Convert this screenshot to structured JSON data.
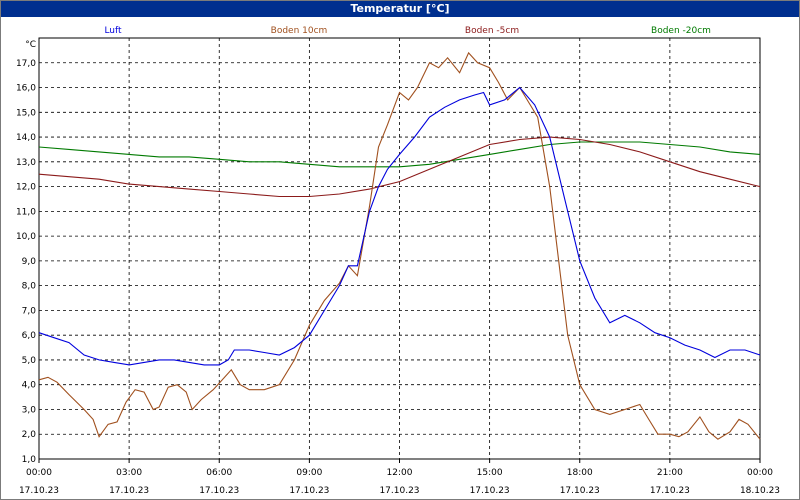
{
  "window": {
    "title": "Temperatur [°C]"
  },
  "chart_data": {
    "type": "line",
    "title": "Temperatur [°C]",
    "unit_label": "°C",
    "ylim": [
      1.0,
      18.0
    ],
    "y_ticks": [
      "1,0",
      "2,0",
      "3,0",
      "4,0",
      "5,0",
      "6,0",
      "7,0",
      "8,0",
      "9,0",
      "10,0",
      "11,0",
      "12,0",
      "13,0",
      "14,0",
      "15,0",
      "16,0",
      "17,0"
    ],
    "x_range_hours": [
      0,
      24
    ],
    "x_ticks": [
      {
        "h": 0,
        "time": "00:00",
        "date": "17.10.23"
      },
      {
        "h": 3,
        "time": "03:00",
        "date": "17.10.23"
      },
      {
        "h": 6,
        "time": "06:00",
        "date": "17.10.23"
      },
      {
        "h": 9,
        "time": "09:00",
        "date": "17.10.23"
      },
      {
        "h": 12,
        "time": "12:00",
        "date": "17.10.23"
      },
      {
        "h": 15,
        "time": "15:00",
        "date": "17.10.23"
      },
      {
        "h": 18,
        "time": "18:00",
        "date": "17.10.23"
      },
      {
        "h": 21,
        "time": "21:00",
        "date": "17.10.23"
      },
      {
        "h": 24,
        "time": "00:00",
        "date": "18.10.23"
      }
    ],
    "grid": true,
    "legend_position": "top",
    "series": [
      {
        "name": "Luft",
        "color": "#0000dd",
        "points": [
          [
            0,
            6.1
          ],
          [
            0.5,
            5.9
          ],
          [
            1,
            5.7
          ],
          [
            1.5,
            5.2
          ],
          [
            2,
            5.0
          ],
          [
            2.5,
            4.9
          ],
          [
            3,
            4.8
          ],
          [
            3.5,
            4.9
          ],
          [
            4,
            5.0
          ],
          [
            4.5,
            5.0
          ],
          [
            5,
            4.9
          ],
          [
            5.5,
            4.8
          ],
          [
            6,
            4.8
          ],
          [
            6.3,
            5.0
          ],
          [
            6.5,
            5.4
          ],
          [
            7,
            5.4
          ],
          [
            7.5,
            5.3
          ],
          [
            8,
            5.2
          ],
          [
            8.5,
            5.5
          ],
          [
            9,
            6.0
          ],
          [
            9.5,
            7.0
          ],
          [
            10,
            8.0
          ],
          [
            10.3,
            8.8
          ],
          [
            10.6,
            8.8
          ],
          [
            11,
            11.0
          ],
          [
            11.3,
            12.0
          ],
          [
            11.6,
            12.7
          ],
          [
            12,
            13.3
          ],
          [
            12.5,
            14.0
          ],
          [
            13,
            14.8
          ],
          [
            13.5,
            15.2
          ],
          [
            14,
            15.5
          ],
          [
            14.5,
            15.7
          ],
          [
            14.8,
            15.8
          ],
          [
            15,
            15.3
          ],
          [
            15.5,
            15.5
          ],
          [
            16,
            16.0
          ],
          [
            16.5,
            15.3
          ],
          [
            17,
            14.0
          ],
          [
            17.5,
            11.5
          ],
          [
            18,
            9.0
          ],
          [
            18.5,
            7.5
          ],
          [
            19,
            6.5
          ],
          [
            19.5,
            6.8
          ],
          [
            20,
            6.5
          ],
          [
            20.5,
            6.1
          ],
          [
            21,
            5.9
          ],
          [
            21.5,
            5.6
          ],
          [
            22,
            5.4
          ],
          [
            22.5,
            5.1
          ],
          [
            23,
            5.4
          ],
          [
            23.5,
            5.4
          ],
          [
            24,
            5.2
          ]
        ]
      },
      {
        "name": "Boden 10cm",
        "color": "#a0501e",
        "points": [
          [
            0,
            4.2
          ],
          [
            0.3,
            4.3
          ],
          [
            0.6,
            4.1
          ],
          [
            1,
            3.6
          ],
          [
            1.5,
            3.0
          ],
          [
            1.8,
            2.6
          ],
          [
            2,
            1.9
          ],
          [
            2.3,
            2.4
          ],
          [
            2.6,
            2.5
          ],
          [
            2.9,
            3.3
          ],
          [
            3.2,
            3.8
          ],
          [
            3.5,
            3.7
          ],
          [
            3.8,
            3.0
          ],
          [
            4,
            3.1
          ],
          [
            4.3,
            3.9
          ],
          [
            4.6,
            4.0
          ],
          [
            4.9,
            3.7
          ],
          [
            5.1,
            3.0
          ],
          [
            5.4,
            3.4
          ],
          [
            5.8,
            3.8
          ],
          [
            6.1,
            4.2
          ],
          [
            6.4,
            4.6
          ],
          [
            6.7,
            4.0
          ],
          [
            7,
            3.8
          ],
          [
            7.5,
            3.8
          ],
          [
            8,
            4.0
          ],
          [
            8.5,
            5.0
          ],
          [
            9,
            6.4
          ],
          [
            9.5,
            7.4
          ],
          [
            10,
            8.1
          ],
          [
            10.3,
            8.8
          ],
          [
            10.6,
            8.4
          ],
          [
            11,
            11.2
          ],
          [
            11.3,
            13.6
          ],
          [
            11.6,
            14.5
          ],
          [
            12,
            15.8
          ],
          [
            12.3,
            15.5
          ],
          [
            12.6,
            16.0
          ],
          [
            13,
            17.0
          ],
          [
            13.3,
            16.8
          ],
          [
            13.6,
            17.2
          ],
          [
            14,
            16.6
          ],
          [
            14.3,
            17.4
          ],
          [
            14.6,
            17.0
          ],
          [
            15,
            16.8
          ],
          [
            15.3,
            16.2
          ],
          [
            15.6,
            15.5
          ],
          [
            16,
            16.0
          ],
          [
            16.3,
            15.4
          ],
          [
            16.6,
            14.8
          ],
          [
            17,
            12.0
          ],
          [
            17.3,
            9.0
          ],
          [
            17.6,
            6.0
          ],
          [
            18,
            4.0
          ],
          [
            18.5,
            3.0
          ],
          [
            19,
            2.8
          ],
          [
            19.5,
            3.0
          ],
          [
            20,
            3.2
          ],
          [
            20.3,
            2.6
          ],
          [
            20.6,
            2.0
          ],
          [
            21,
            2.0
          ],
          [
            21.3,
            1.9
          ],
          [
            21.6,
            2.1
          ],
          [
            22,
            2.7
          ],
          [
            22.3,
            2.1
          ],
          [
            22.6,
            1.8
          ],
          [
            23,
            2.1
          ],
          [
            23.3,
            2.6
          ],
          [
            23.6,
            2.4
          ],
          [
            24,
            1.8
          ]
        ]
      },
      {
        "name": "Boden -5cm",
        "color": "#8b1a1a",
        "points": [
          [
            0,
            12.5
          ],
          [
            1,
            12.4
          ],
          [
            2,
            12.3
          ],
          [
            3,
            12.1
          ],
          [
            4,
            12.0
          ],
          [
            5,
            11.9
          ],
          [
            6,
            11.8
          ],
          [
            7,
            11.7
          ],
          [
            8,
            11.6
          ],
          [
            9,
            11.6
          ],
          [
            10,
            11.7
          ],
          [
            11,
            11.9
          ],
          [
            12,
            12.2
          ],
          [
            13,
            12.7
          ],
          [
            14,
            13.2
          ],
          [
            15,
            13.7
          ],
          [
            16,
            13.9
          ],
          [
            17,
            14.0
          ],
          [
            18,
            13.9
          ],
          [
            19,
            13.7
          ],
          [
            20,
            13.4
          ],
          [
            21,
            13.0
          ],
          [
            22,
            12.6
          ],
          [
            23,
            12.3
          ],
          [
            24,
            12.0
          ]
        ]
      },
      {
        "name": "Boden -20cm",
        "color": "#007a00",
        "points": [
          [
            0,
            13.6
          ],
          [
            1,
            13.5
          ],
          [
            2,
            13.4
          ],
          [
            3,
            13.3
          ],
          [
            4,
            13.2
          ],
          [
            5,
            13.2
          ],
          [
            6,
            13.1
          ],
          [
            7,
            13.0
          ],
          [
            8,
            13.0
          ],
          [
            9,
            12.9
          ],
          [
            10,
            12.8
          ],
          [
            11,
            12.8
          ],
          [
            12,
            12.8
          ],
          [
            13,
            12.9
          ],
          [
            14,
            13.1
          ],
          [
            15,
            13.3
          ],
          [
            16,
            13.5
          ],
          [
            17,
            13.7
          ],
          [
            18,
            13.8
          ],
          [
            19,
            13.8
          ],
          [
            20,
            13.8
          ],
          [
            21,
            13.7
          ],
          [
            22,
            13.6
          ],
          [
            23,
            13.4
          ],
          [
            24,
            13.3
          ]
        ]
      }
    ]
  }
}
